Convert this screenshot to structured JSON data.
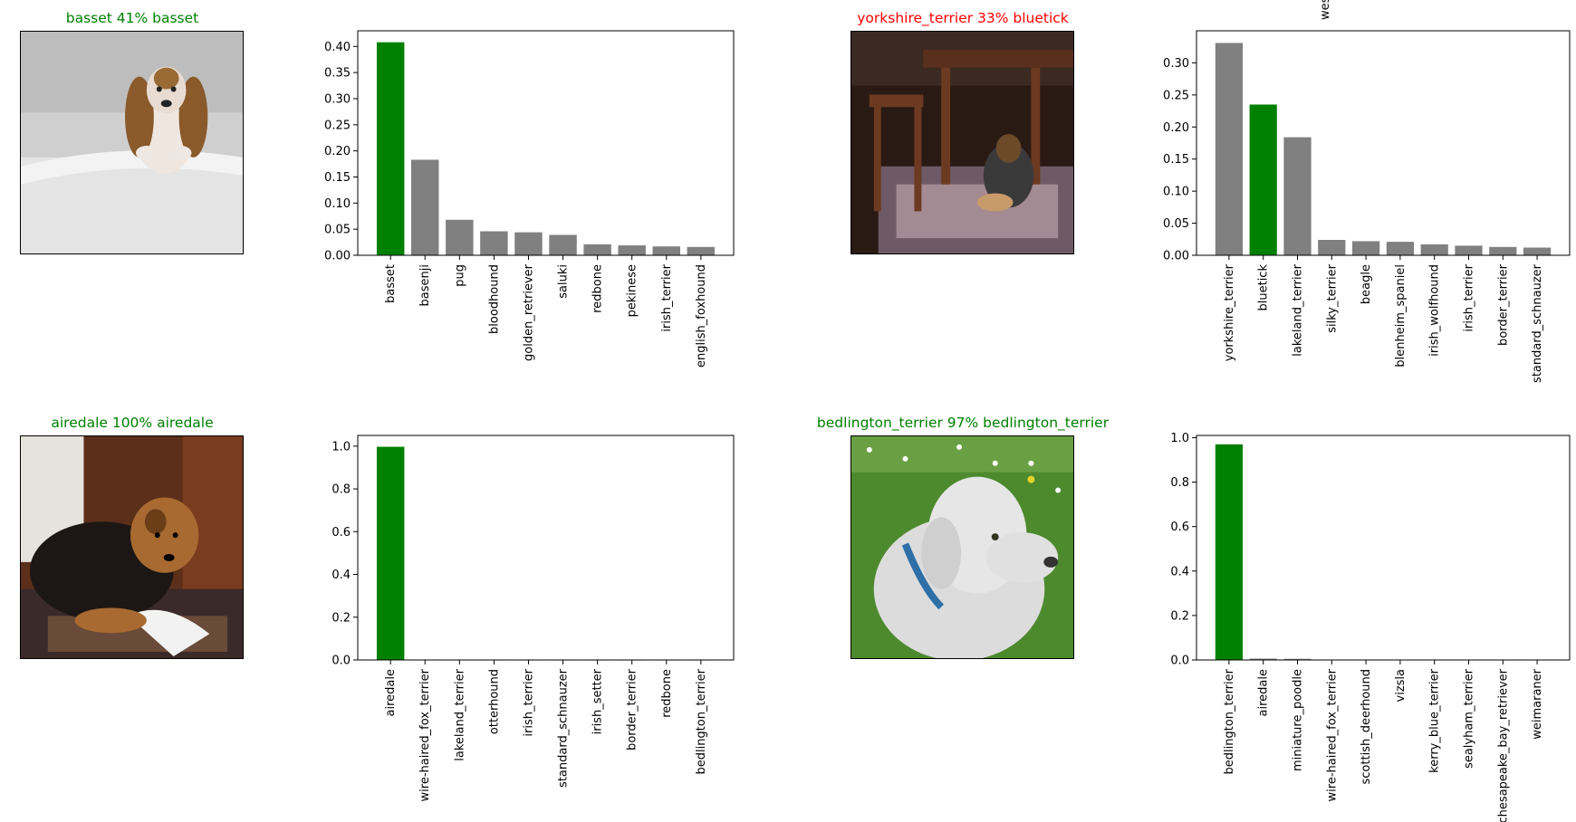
{
  "colors": {
    "correct": "#008000",
    "wrong": "#ff0000",
    "bar": "#808080",
    "highlight": "#008000"
  },
  "panels": [
    {
      "title": "basset 41% basset",
      "title_color": "#008000",
      "photo_icon": "basset-dog-photo"
    },
    {
      "title": "yorkshire_terrier 33% bluetick",
      "title_color": "#ff0000",
      "photo_icon": "bluetick-dog-under-table-photo"
    },
    {
      "title": "airedale 100% airedale",
      "title_color": "#008000",
      "photo_icon": "airedale-dog-photo"
    },
    {
      "title": "bedlington_terrier 97% bedlington_terrier",
      "title_color": "#008000",
      "photo_icon": "bedlington-terrier-dog-photo"
    }
  ],
  "overflow_label": "wes",
  "chart_data": [
    {
      "type": "bar",
      "categories": [
        "basset",
        "basenji",
        "pug",
        "bloodhound",
        "golden_retriever",
        "saluki",
        "redbone",
        "pekinese",
        "irish_terrier",
        "english_foxhound"
      ],
      "values": [
        0.408,
        0.183,
        0.068,
        0.046,
        0.044,
        0.039,
        0.021,
        0.019,
        0.017,
        0.016
      ],
      "highlight_index": 0,
      "ylim": [
        0,
        0.43
      ],
      "yticks": [
        "0.00",
        "0.05",
        "0.10",
        "0.15",
        "0.20",
        "0.25",
        "0.30",
        "0.35",
        "0.40"
      ],
      "ytick_values": [
        0,
        0.05,
        0.1,
        0.15,
        0.2,
        0.25,
        0.3,
        0.35,
        0.4
      ],
      "title": "",
      "xlabel": "",
      "ylabel": ""
    },
    {
      "type": "bar",
      "categories": [
        "yorkshire_terrier",
        "bluetick",
        "lakeland_terrier",
        "silky_terrier",
        "beagle",
        "blenheim_spaniel",
        "irish_wolfhound",
        "irish_terrier",
        "border_terrier",
        "standard_schnauzer"
      ],
      "values": [
        0.331,
        0.235,
        0.184,
        0.024,
        0.022,
        0.021,
        0.017,
        0.015,
        0.013,
        0.012
      ],
      "highlight_index": 1,
      "ylim": [
        0,
        0.35
      ],
      "yticks": [
        "0.00",
        "0.05",
        "0.10",
        "0.15",
        "0.20",
        "0.25",
        "0.30"
      ],
      "ytick_values": [
        0,
        0.05,
        0.1,
        0.15,
        0.2,
        0.25,
        0.3
      ],
      "title": "",
      "xlabel": "",
      "ylabel": ""
    },
    {
      "type": "bar",
      "categories": [
        "airedale",
        "wire-haired_fox_terrier",
        "lakeland_terrier",
        "otterhound",
        "irish_terrier",
        "standard_schnauzer",
        "irish_setter",
        "border_terrier",
        "redbone",
        "bedlington_terrier"
      ],
      "values": [
        0.997,
        0.002,
        0.0003,
        0.0002,
        0.0002,
        0.0001,
        0.0001,
        0.0001,
        0.0001,
        0.0001
      ],
      "highlight_index": 0,
      "ylim": [
        0,
        1.05
      ],
      "yticks": [
        "0.0",
        "0.2",
        "0.4",
        "0.6",
        "0.8",
        "1.0"
      ],
      "ytick_values": [
        0,
        0.2,
        0.4,
        0.6,
        0.8,
        1.0
      ],
      "title": "",
      "xlabel": "",
      "ylabel": ""
    },
    {
      "type": "bar",
      "categories": [
        "bedlington_terrier",
        "airedale",
        "miniature_poodle",
        "wire-haired_fox_terrier",
        "scottish_deerhound",
        "vizsla",
        "kerry_blue_terrier",
        "sealyham_terrier",
        "chesapeake_bay_retriever",
        "weimaraner"
      ],
      "values": [
        0.97,
        0.006,
        0.005,
        0.002,
        0.002,
        0.002,
        0.002,
        0.002,
        0.002,
        0.002
      ],
      "highlight_index": 0,
      "ylim": [
        0,
        1.01
      ],
      "yticks": [
        "0.0",
        "0.2",
        "0.4",
        "0.6",
        "0.8",
        "1.0"
      ],
      "ytick_values": [
        0,
        0.2,
        0.4,
        0.6,
        0.8,
        1.0
      ],
      "title": "",
      "xlabel": "",
      "ylabel": ""
    }
  ]
}
